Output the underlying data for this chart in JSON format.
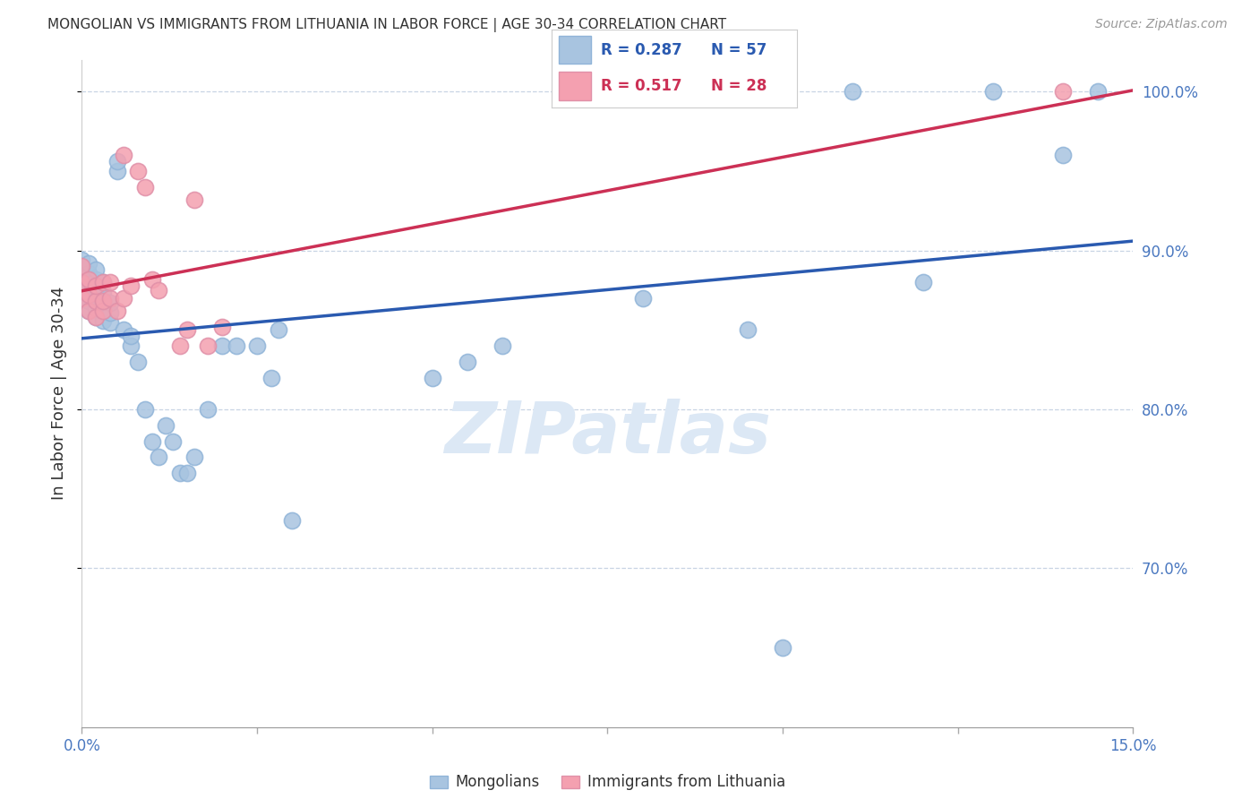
{
  "title": "MONGOLIAN VS IMMIGRANTS FROM LITHUANIA IN LABOR FORCE | AGE 30-34 CORRELATION CHART",
  "source": "Source: ZipAtlas.com",
  "ylabel": "In Labor Force | Age 30-34",
  "xlim": [
    0.0,
    0.15
  ],
  "ylim": [
    0.6,
    1.02
  ],
  "yticks": [
    0.7,
    0.8,
    0.9,
    1.0
  ],
  "ytick_labels": [
    "70.0%",
    "80.0%",
    "90.0%",
    "100.0%"
  ],
  "xticks": [
    0.0,
    0.025,
    0.05,
    0.075,
    0.1,
    0.125,
    0.15
  ],
  "xtick_labels": [
    "0.0%",
    "",
    "",
    "",
    "",
    "",
    "15.0%"
  ],
  "blue_R": 0.287,
  "blue_N": 57,
  "pink_R": 0.517,
  "pink_N": 28,
  "blue_color": "#a8c4e0",
  "pink_color": "#f4a0b0",
  "blue_line_color": "#2a5ab0",
  "pink_line_color": "#cc3055",
  "watermark": "ZIPatlas",
  "blue_scatter_x": [
    0.0,
    0.0,
    0.0,
    0.0,
    0.0,
    0.001,
    0.001,
    0.001,
    0.001,
    0.001,
    0.001,
    0.002,
    0.002,
    0.002,
    0.002,
    0.002,
    0.002,
    0.003,
    0.003,
    0.003,
    0.003,
    0.003,
    0.004,
    0.004,
    0.004,
    0.005,
    0.005,
    0.006,
    0.007,
    0.007,
    0.008,
    0.009,
    0.01,
    0.011,
    0.012,
    0.013,
    0.014,
    0.015,
    0.016,
    0.018,
    0.02,
    0.022,
    0.025,
    0.027,
    0.028,
    0.03,
    0.05,
    0.055,
    0.06,
    0.08,
    0.095,
    0.1,
    0.11,
    0.12,
    0.13,
    0.14,
    0.145
  ],
  "blue_scatter_y": [
    0.87,
    0.876,
    0.882,
    0.888,
    0.894,
    0.862,
    0.868,
    0.874,
    0.88,
    0.886,
    0.892,
    0.858,
    0.864,
    0.87,
    0.876,
    0.882,
    0.888,
    0.856,
    0.862,
    0.868,
    0.874,
    0.88,
    0.855,
    0.861,
    0.867,
    0.95,
    0.956,
    0.85,
    0.84,
    0.846,
    0.83,
    0.8,
    0.78,
    0.77,
    0.79,
    0.78,
    0.76,
    0.76,
    0.77,
    0.8,
    0.84,
    0.84,
    0.84,
    0.82,
    0.85,
    0.73,
    0.82,
    0.83,
    0.84,
    0.87,
    0.85,
    0.65,
    1.0,
    0.88,
    1.0,
    0.96,
    1.0
  ],
  "pink_scatter_x": [
    0.0,
    0.0,
    0.0,
    0.001,
    0.001,
    0.001,
    0.002,
    0.002,
    0.002,
    0.003,
    0.003,
    0.003,
    0.004,
    0.004,
    0.005,
    0.006,
    0.006,
    0.007,
    0.008,
    0.009,
    0.01,
    0.011,
    0.014,
    0.015,
    0.016,
    0.018,
    0.02,
    0.14
  ],
  "pink_scatter_y": [
    0.87,
    0.88,
    0.89,
    0.862,
    0.872,
    0.882,
    0.858,
    0.868,
    0.878,
    0.862,
    0.868,
    0.88,
    0.87,
    0.88,
    0.862,
    0.87,
    0.96,
    0.878,
    0.95,
    0.94,
    0.882,
    0.875,
    0.84,
    0.85,
    0.932,
    0.84,
    0.852,
    1.0
  ]
}
